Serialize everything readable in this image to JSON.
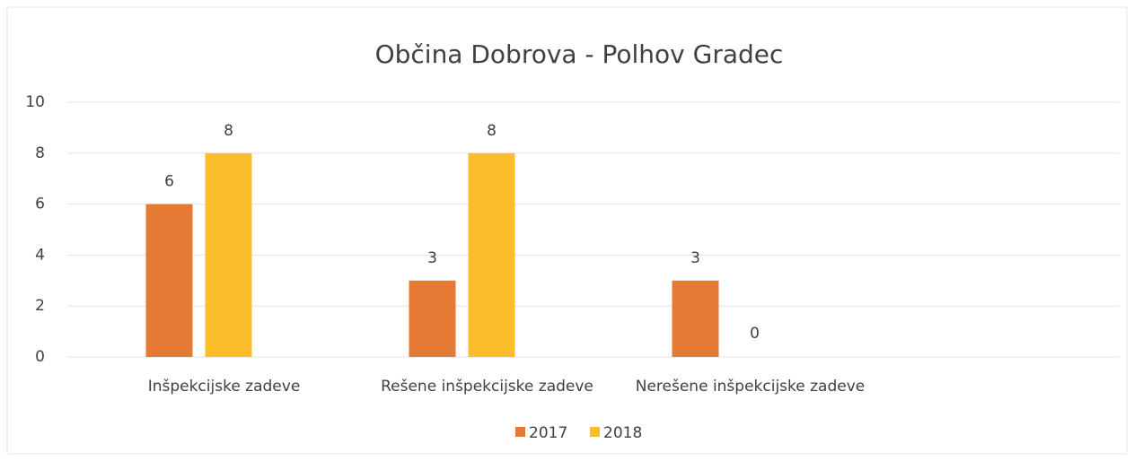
{
  "chart_data": {
    "type": "bar",
    "title": "Občina Dobrova - Polhov Gradec",
    "categories": [
      "Inšpekcijske zadeve",
      "Rešene inšpekcijske zadeve",
      "Nerešene inšpekcijske zadeve",
      null
    ],
    "series": [
      {
        "name": "2017",
        "color": "#e57a35",
        "values": [
          6,
          3,
          3,
          null
        ]
      },
      {
        "name": "2018",
        "color": "#fbbd2a",
        "values": [
          8,
          8,
          0,
          null
        ]
      }
    ],
    "ylim": [
      0,
      10
    ],
    "yticks": [
      0,
      2,
      4,
      6,
      8,
      10
    ],
    "grid": true,
    "legend": "bottom"
  }
}
